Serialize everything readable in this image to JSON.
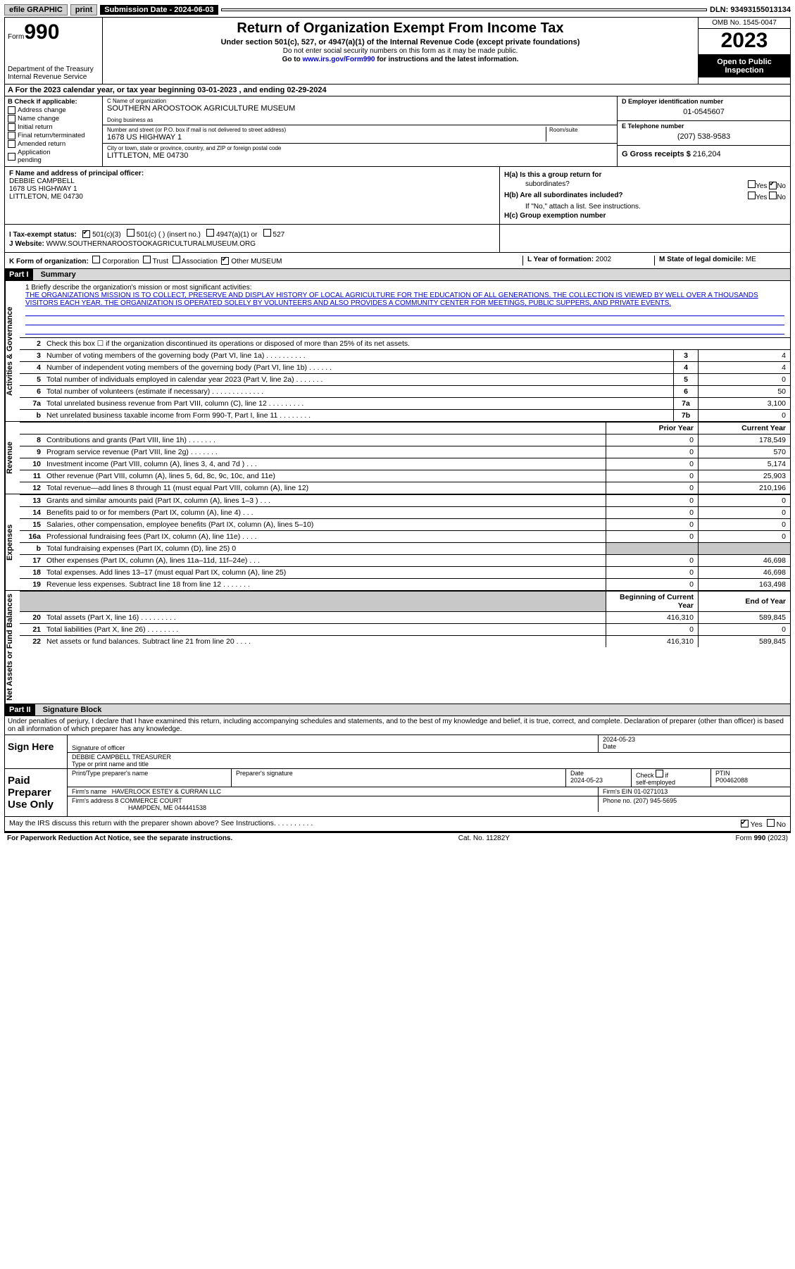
{
  "top": {
    "efile": "efile GRAPHIC",
    "print": "print",
    "sub_label": "Submission Date - ",
    "sub_date": "2024-06-03",
    "dln_label": "DLN: ",
    "dln": "93493155013134"
  },
  "hdr": {
    "form_word": "Form",
    "form_no": "990",
    "dept1": "Department of the Treasury",
    "dept2": "Internal Revenue Service",
    "title": "Return of Organization Exempt From Income Tax",
    "sub1": "Under section 501(c), 527, or 4947(a)(1) of the Internal Revenue Code (except private foundations)",
    "sub2": "Do not enter social security numbers on this form as it may be made public.",
    "sub3_pre": "Go to ",
    "sub3_link": "www.irs.gov/Form990",
    "sub3_post": " for instructions and the latest information.",
    "omb": "OMB No. 1545-0047",
    "year": "2023",
    "open1": "Open to Public",
    "open2": "Inspection"
  },
  "row_a": "A   For the 2023 calendar year, or tax year beginning 03-01-2023    , and ending 02-29-2024",
  "b": {
    "hdr": "B Check if applicable:",
    "addr": "Address change",
    "name": "Name change",
    "init": "Initial return",
    "final": "Final return/terminated",
    "amend": "Amended return",
    "app1": "Application",
    "app2": "pending"
  },
  "c": {
    "name_lbl": "C Name of organization",
    "name": "SOUTHERN AROOSTOOK AGRICULTURE MUSEUM",
    "dba_lbl": "Doing business as",
    "dba": "",
    "street_lbl": "Number and street (or P.O. box if mail is not delivered to street address)",
    "room_lbl": "Room/suite",
    "street": "1678 US HIGHWAY 1",
    "city_lbl": "City or town, state or province, country, and ZIP or foreign postal code",
    "city": "LITTLETON, ME  04730"
  },
  "d": {
    "ein_lbl": "D Employer identification number",
    "ein": "01-0545607",
    "tel_lbl": "E Telephone number",
    "tel": "(207) 538-9583",
    "gross_lbl": "G Gross receipts $ ",
    "gross": "216,204"
  },
  "f": {
    "lbl": "F  Name and address of principal officer:",
    "name": "DEBBIE CAMPBELL",
    "addr1": "1678 US HIGHWAY 1",
    "addr2": "LITTLETON, ME   04730"
  },
  "h": {
    "a": "H(a)  Is this a group return for",
    "a2": "subordinates?",
    "b": "H(b)  Are all subordinates included?",
    "b2": "If \"No,\" attach a list. See instructions.",
    "c": "H(c)  Group exemption number ",
    "yes": "Yes",
    "no": "No"
  },
  "i": {
    "lbl": "I     Tax-exempt status:",
    "o1": "501(c)(3)",
    "o2": "501(c) (  ) (insert no.)",
    "o3": "4947(a)(1) or",
    "o4": "527"
  },
  "j": {
    "lbl": "J     Website: ",
    "val": "WWW.SOUTHERNAROOSTOOKAGRICULTURALMUSEUM.ORG"
  },
  "k": {
    "lbl": "K Form of organization:",
    "corp": "Corporation",
    "trust": "Trust",
    "assoc": "Association",
    "other": "Other",
    "other_val": "MUSEUM",
    "l_lbl": "L Year of formation: ",
    "l_val": "2002",
    "m_lbl": "M State of legal domicile: ",
    "m_val": "ME"
  },
  "part1": {
    "hdr": "Part I",
    "title": "Summary"
  },
  "sides": {
    "gov": "Activities & Governance",
    "rev": "Revenue",
    "exp": "Expenses",
    "net": "Net Assets or Fund Balances"
  },
  "mission": {
    "lbl": "1   Briefly describe the organization's mission or most significant activities:",
    "text": "THE ORGANIZATIONS MISSION IS TO COLLECT, PRESERVE AND DISPLAY HISTORY OF LOCAL AGRICULTURE FOR THE EDUCATION OF ALL GENERATIONS. THE COLLECTION IS VIEWED BY WELL OVER A THOUSANDS VISITORS EACH YEAR. THE ORGANIZATION IS OPERATED SOLELY BY VOLUNTEERS AND ALSO PROVIDES A COMMUNITY CENTER FOR MEETINGS, PUBLIC SUPPERS, AND PRIVATE EVENTS."
  },
  "gov_rows": [
    {
      "n": "2",
      "t": "Check this box  ☐  if the organization discontinued its operations or disposed of more than 25% of its net assets."
    },
    {
      "n": "3",
      "t": "Number of voting members of the governing body (Part VI, line 1a)   .    .    .    .    .    .    .    .    .    .",
      "c": "3",
      "v": "4"
    },
    {
      "n": "4",
      "t": "Number of independent voting members of the governing body (Part VI, line 1b)   .    .    .    .    .    .",
      "c": "4",
      "v": "4"
    },
    {
      "n": "5",
      "t": "Total number of individuals employed in calendar year 2023 (Part V, line 2a)   .    .    .    .    .    .    .",
      "c": "5",
      "v": "0"
    },
    {
      "n": "6",
      "t": "Total number of volunteers (estimate if necessary)   .    .    .    .    .    .    .    .    .    .    .    .    .",
      "c": "6",
      "v": "50"
    },
    {
      "n": "7a",
      "t": "Total unrelated business revenue from Part VIII, column (C), line 12   .    .    .    .    .    .    .    .    .",
      "c": "7a",
      "v": "3,100"
    },
    {
      "n": "b",
      "t": "Net unrelated business taxable income from Form 990-T, Part I, line 11   .    .    .    .    .    .    .    .",
      "c": "7b",
      "v": "0"
    }
  ],
  "two_col_hdr": {
    "prior": "Prior Year",
    "current": "Current Year",
    "boy": "Beginning of Current Year",
    "eoy": "End of Year"
  },
  "rev_rows": [
    {
      "n": "8",
      "t": "Contributions and grants (Part VIII, line 1h)   .    .    .    .    .    .    .",
      "p": "0",
      "c": "178,549"
    },
    {
      "n": "9",
      "t": "Program service revenue (Part VIII, line 2g)   .    .    .    .    .    .    .",
      "p": "0",
      "c": "570"
    },
    {
      "n": "10",
      "t": "Investment income (Part VIII, column (A), lines 3, 4, and 7d )   .    .    .",
      "p": "0",
      "c": "5,174"
    },
    {
      "n": "11",
      "t": "Other revenue (Part VIII, column (A), lines 5, 6d, 8c, 9c, 10c, and 11e)",
      "p": "0",
      "c": "25,903"
    },
    {
      "n": "12",
      "t": "Total revenue—add lines 8 through 11 (must equal Part VIII, column (A), line 12)",
      "p": "0",
      "c": "210,196"
    }
  ],
  "exp_rows": [
    {
      "n": "13",
      "t": "Grants and similar amounts paid (Part IX, column (A), lines 1–3 )   .    .    .",
      "p": "0",
      "c": "0"
    },
    {
      "n": "14",
      "t": "Benefits paid to or for members (Part IX, column (A), line 4)   .    .    .",
      "p": "0",
      "c": "0"
    },
    {
      "n": "15",
      "t": "Salaries, other compensation, employee benefits (Part IX, column (A), lines 5–10)",
      "p": "0",
      "c": "0"
    },
    {
      "n": "16a",
      "t": "Professional fundraising fees (Part IX, column (A), line 11e)   .    .    .    .",
      "p": "0",
      "c": "0"
    },
    {
      "n": "b",
      "t": "Total fundraising expenses (Part IX, column (D), line 25) 0",
      "p": "",
      "c": "",
      "gray": true
    },
    {
      "n": "17",
      "t": "Other expenses (Part IX, column (A), lines 11a–11d, 11f–24e)   .    .    .",
      "p": "0",
      "c": "46,698"
    },
    {
      "n": "18",
      "t": "Total expenses. Add lines 13–17 (must equal Part IX, column (A), line 25)",
      "p": "0",
      "c": "46,698"
    },
    {
      "n": "19",
      "t": "Revenue less expenses. Subtract line 18 from line 12   .    .    .    .    .    .    .",
      "p": "0",
      "c": "163,498"
    }
  ],
  "net_rows": [
    {
      "n": "20",
      "t": "Total assets (Part X, line 16)   .    .    .    .    .    .    .    .    .",
      "p": "416,310",
      "c": "589,845"
    },
    {
      "n": "21",
      "t": "Total liabilities (Part X, line 26)   .    .    .    .    .    .    .    .",
      "p": "0",
      "c": "0"
    },
    {
      "n": "22",
      "t": "Net assets or fund balances. Subtract line 21 from line 20   .    .    .    .",
      "p": "416,310",
      "c": "589,845"
    }
  ],
  "part2": {
    "hdr": "Part II",
    "title": "Signature Block"
  },
  "perjury": "Under penalties of perjury, I declare that I have examined this return, including accompanying schedules and statements, and to the best of my knowledge and belief, it is true, correct, and complete. Declaration of preparer (other than officer) is based on all information of which preparer has any knowledge.",
  "sign": {
    "here": "Sign Here",
    "sig_lbl": "Signature of officer",
    "name": "DEBBIE CAMPBELL  TREASURER",
    "name_lbl": "Type or print name and title",
    "date_lbl": "Date",
    "date": "2024-05-23"
  },
  "paid": {
    "hdr": "Paid Preparer Use Only",
    "col1": "Print/Type preparer's name",
    "col2": "Preparer's signature",
    "col3": "Date",
    "date": "2024-05-23",
    "col4a": "Check",
    "col4b": "if",
    "col4c": "self-employed",
    "col5": "PTIN",
    "ptin": "P00462088",
    "firm_lbl": "Firm's name    ",
    "firm": "HAVERLOCK ESTEY & CURRAN LLC",
    "ein_lbl": "Firm's EIN  ",
    "ein": "01-0271013",
    "addr_lbl": "Firm's address ",
    "addr1": "8 COMMERCE COURT",
    "addr2": "HAMPDEN, ME  044441538",
    "phone_lbl": "Phone no. ",
    "phone": "(207) 945-5695"
  },
  "discuss": {
    "q": "May the IRS discuss this return with the preparer shown above? See Instructions.   .    .    .    .    .    .    .    .    .",
    "yes": "Yes",
    "no": "No"
  },
  "footer": {
    "left": "For Paperwork Reduction Act Notice, see the separate instructions.",
    "mid": "Cat. No. 11282Y",
    "right": "Form 990 (2023)"
  }
}
